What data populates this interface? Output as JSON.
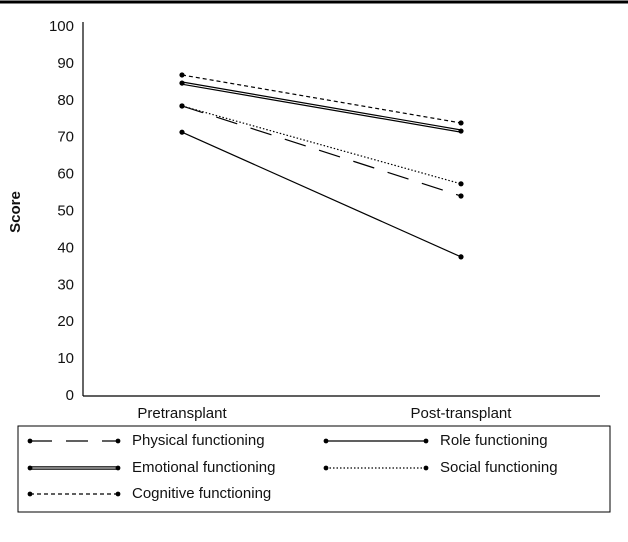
{
  "chart_data": {
    "type": "line",
    "ylabel": "Score",
    "categories": [
      "Pretransplant",
      "Post-transplant"
    ],
    "ylim": [
      0,
      100
    ],
    "yticks": [
      0,
      10,
      20,
      30,
      40,
      50,
      60,
      70,
      80,
      90,
      100
    ],
    "series": [
      {
        "name": "Physical functioning",
        "color": "#000000",
        "style": "long-dashed",
        "values": [
          78.6,
          54.2
        ]
      },
      {
        "name": "Role functioning",
        "color": "#000000",
        "style": "solid",
        "values": [
          71.5,
          37.7
        ]
      },
      {
        "name": "Emotional functioning",
        "color": "#000000",
        "style": "double",
        "values": [
          84.8,
          71.8
        ]
      },
      {
        "name": "Social functioning",
        "color": "#000000",
        "style": "dotted",
        "values": [
          78.6,
          57.5
        ]
      },
      {
        "name": "Cognitive functioning",
        "color": "#000000",
        "style": "short-dashed",
        "values": [
          87,
          74
        ]
      }
    ],
    "legend": "bottom"
  }
}
